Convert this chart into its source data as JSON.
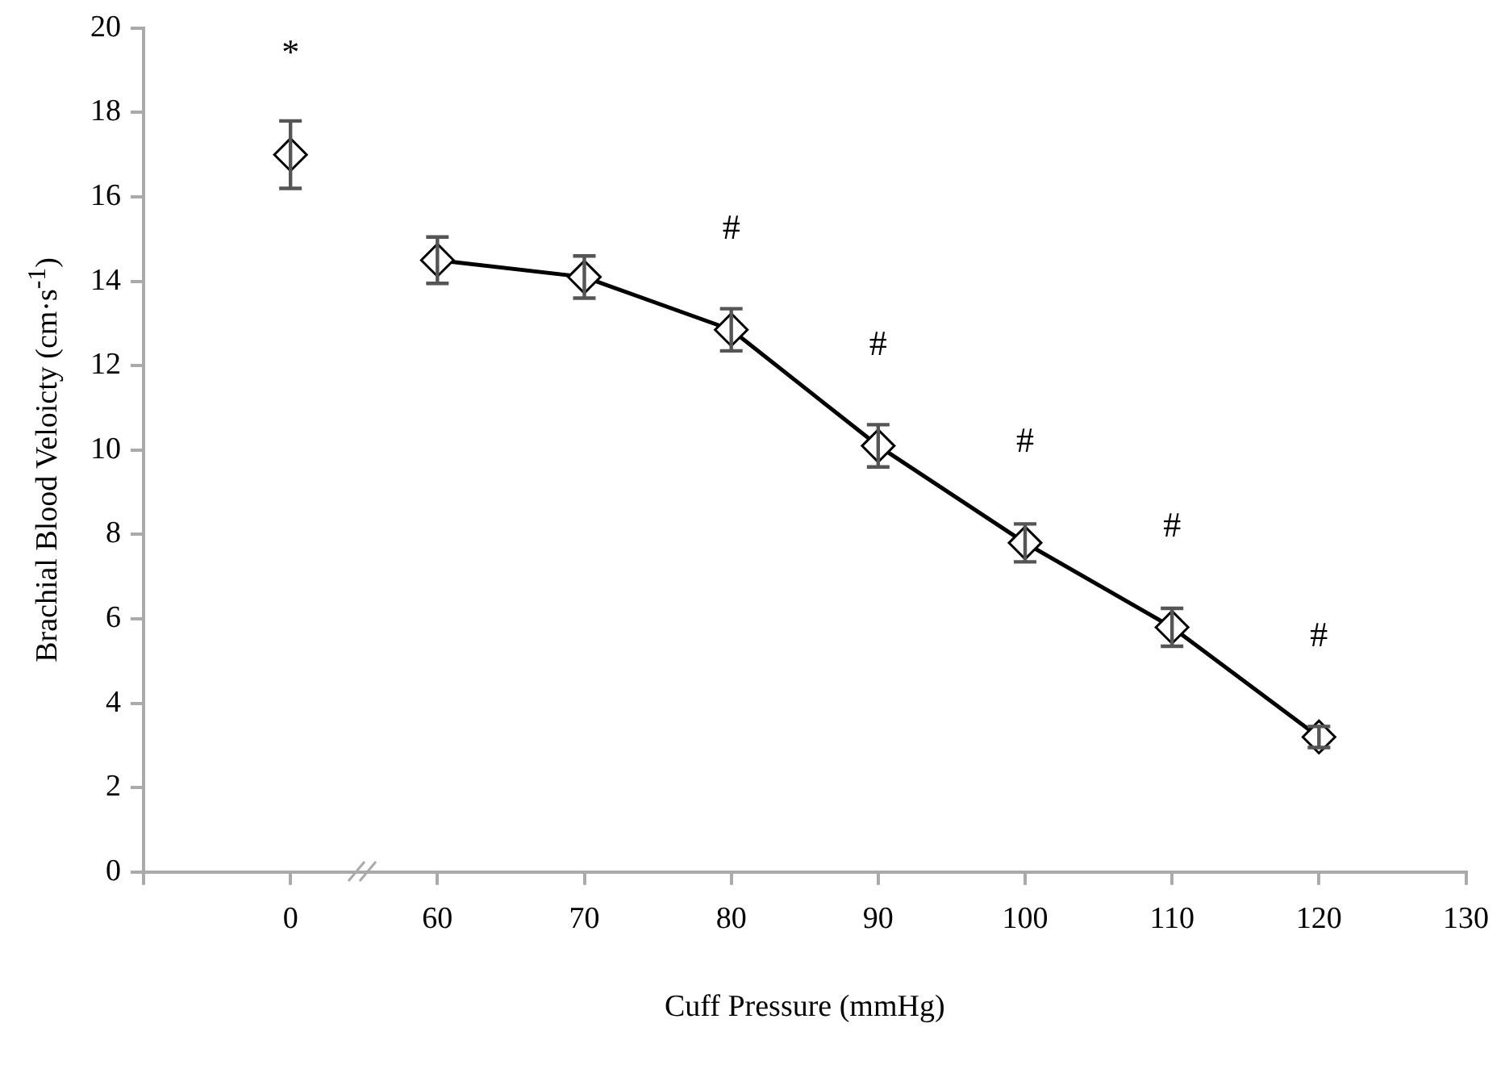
{
  "chart_data": {
    "type": "line",
    "xlabel": "Cuff Pressure (mmHg)",
    "ylabel": "Brachial Blood Veloicty (cm·s$^{-1}$)",
    "categories": [
      null,
      "0",
      "60",
      "70",
      "80",
      "90",
      "100",
      "110",
      "120",
      "130"
    ],
    "series": [
      {
        "type": "scatter",
        "color": "#000000",
        "values": [
          null,
          17.0,
          null,
          null,
          null,
          null,
          null,
          null,
          null,
          null
        ],
        "errors": [
          null,
          0.8,
          null,
          null,
          null,
          null,
          null,
          null,
          null,
          null
        ]
      },
      {
        "type": "line",
        "color": "#000000",
        "values": [
          null,
          null,
          14.5,
          14.1,
          12.85,
          10.1,
          7.8,
          5.8,
          3.2,
          null
        ],
        "errors": [
          null,
          null,
          0.55,
          0.5,
          0.5,
          0.5,
          0.45,
          0.45,
          0.25,
          null
        ]
      }
    ],
    "ylim": [
      0,
      20
    ],
    "yticks": [
      0,
      2,
      4,
      6,
      8,
      10,
      12,
      14,
      16,
      18,
      20
    ],
    "grid": false,
    "legend": false,
    "marker": "diamond",
    "line_style": "solid",
    "annotations": [
      {
        "text": "*",
        "x": "0",
        "y": 17.0
      },
      {
        "text": "#",
        "x": "80",
        "y": 12.85
      },
      {
        "text": "#",
        "x": "90",
        "y": 10.1
      },
      {
        "text": "#",
        "x": "100",
        "y": 7.8
      },
      {
        "text": "#",
        "x": "110",
        "y": 5.8
      },
      {
        "text": "#",
        "x": "120",
        "y": 3.2
      }
    ]
  }
}
